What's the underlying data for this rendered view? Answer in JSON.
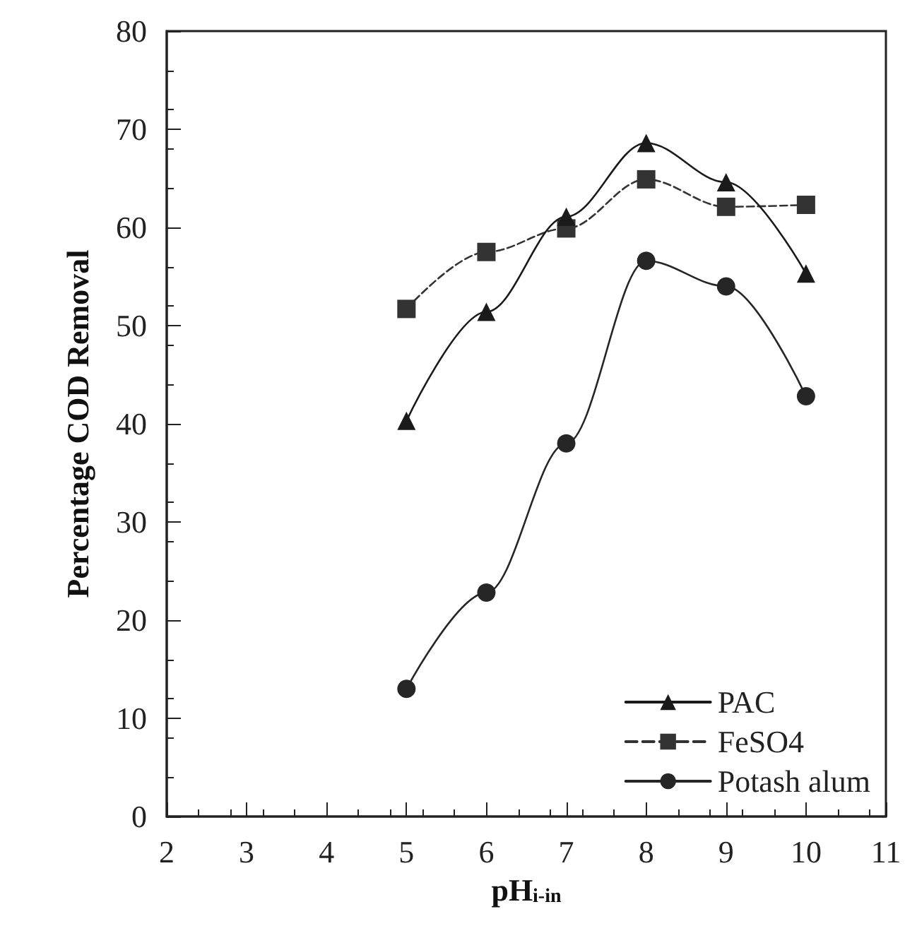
{
  "chart_data": {
    "type": "line",
    "xlabel": "pH$_{i-in}$",
    "ylabel": "Percentage COD Removal",
    "xlim": [
      2,
      11
    ],
    "xticks": [
      2,
      3,
      4,
      5,
      6,
      7,
      8,
      9,
      10,
      11
    ],
    "ylim": [
      0,
      80
    ],
    "yticks": [
      0,
      10,
      20,
      30,
      40,
      50,
      60,
      70,
      80
    ],
    "grid": false,
    "legend": "bottom right",
    "series": [
      {
        "name": "PAC",
        "color": "#1a1a1a",
        "marker": "triangle",
        "line_style": "solid",
        "x": [
          5,
          6,
          7,
          8,
          9,
          10
        ],
        "values": [
          40.3,
          51.4,
          61.1,
          68.6,
          64.6,
          55.3
        ]
      },
      {
        "name": "FeSO4",
        "color": "#333333",
        "marker": "square",
        "line_style": "dashed",
        "x": [
          5,
          6,
          7,
          8,
          9,
          10
        ],
        "values": [
          51.7,
          57.5,
          59.9,
          64.9,
          62.1,
          62.3
        ]
      },
      {
        "name": "Potash alum",
        "color": "#262626",
        "marker": "circle",
        "line_style": "solid",
        "x": [
          5,
          6,
          7,
          8,
          9,
          10
        ],
        "values": [
          13.0,
          22.8,
          38.0,
          56.6,
          54.0,
          42.8
        ]
      }
    ]
  }
}
